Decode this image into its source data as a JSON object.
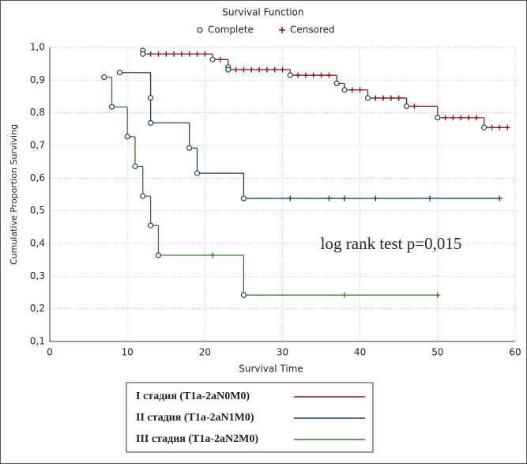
{
  "chart_data": {
    "type": "step",
    "title": "Survival Function",
    "x_label": "Survival Time",
    "y_label": "Cumulative Proportion Surviving",
    "annotation": "log rank test p=0,015",
    "marker_legend": {
      "complete": "Complete",
      "censored": "Censored"
    },
    "xlim": [
      0,
      60
    ],
    "xticks": [
      0,
      10,
      20,
      30,
      40,
      50,
      60
    ],
    "ylim": [
      0.1,
      1.0
    ],
    "yticks": [
      {
        "value": 0.1,
        "label": "0,1"
      },
      {
        "value": 0.2,
        "label": "0,2"
      },
      {
        "value": 0.3,
        "label": "0,3"
      },
      {
        "value": 0.4,
        "label": "0,4"
      },
      {
        "value": 0.5,
        "label": "0,5"
      },
      {
        "value": 0.6,
        "label": "0,6"
      },
      {
        "value": 0.7,
        "label": "0,7"
      },
      {
        "value": 0.8,
        "label": "0,8"
      },
      {
        "value": 0.9,
        "label": "0,9"
      },
      {
        "value": 1.0,
        "label": "1,0"
      }
    ],
    "grid": true,
    "series": [
      {
        "name": "I стадия (T1a-2aN0M0)",
        "color": "#8b1a1a",
        "x": [
          12,
          12,
          21,
          23,
          23,
          31,
          37,
          38,
          41,
          46,
          50,
          56
        ],
        "values": [
          0.99,
          0.98,
          0.963,
          0.94,
          0.932,
          0.915,
          0.89,
          0.87,
          0.845,
          0.82,
          0.785,
          0.755
        ],
        "censored_x": [
          13,
          14,
          15,
          16,
          17,
          18,
          19,
          20,
          22,
          24,
          25,
          26,
          27,
          28,
          29,
          30,
          32,
          33,
          34,
          35,
          36,
          39,
          40,
          42,
          43,
          44,
          45,
          47,
          51,
          52,
          53,
          54,
          55,
          57,
          58,
          59
        ],
        "censored_values": [
          0.98,
          0.98,
          0.98,
          0.98,
          0.98,
          0.98,
          0.98,
          0.98,
          0.963,
          0.932,
          0.932,
          0.932,
          0.932,
          0.932,
          0.932,
          0.932,
          0.915,
          0.915,
          0.915,
          0.915,
          0.915,
          0.87,
          0.87,
          0.845,
          0.845,
          0.845,
          0.845,
          0.82,
          0.785,
          0.785,
          0.785,
          0.785,
          0.785,
          0.755,
          0.755,
          0.755
        ]
      },
      {
        "name": "II стадия (T1a-2aN1M0)",
        "color": "#1f3f6e",
        "x": [
          9,
          13,
          13,
          18,
          19,
          25
        ],
        "values": [
          0.923,
          0.846,
          0.769,
          0.692,
          0.615,
          0.538
        ],
        "censored_x": [
          31,
          36,
          38,
          42,
          49,
          58
        ],
        "censored_values": [
          0.538,
          0.538,
          0.538,
          0.538,
          0.538,
          0.538
        ]
      },
      {
        "name": "III стадия (T1a-2aN2M0)",
        "color": "#3a7a2a",
        "x": [
          7,
          8,
          10,
          11,
          12,
          13,
          14,
          25
        ],
        "values": [
          0.909,
          0.818,
          0.727,
          0.636,
          0.545,
          0.455,
          0.364,
          0.242
        ],
        "censored_x": [
          21,
          38,
          50
        ],
        "censored_values": [
          0.364,
          0.242,
          0.242
        ]
      }
    ]
  }
}
